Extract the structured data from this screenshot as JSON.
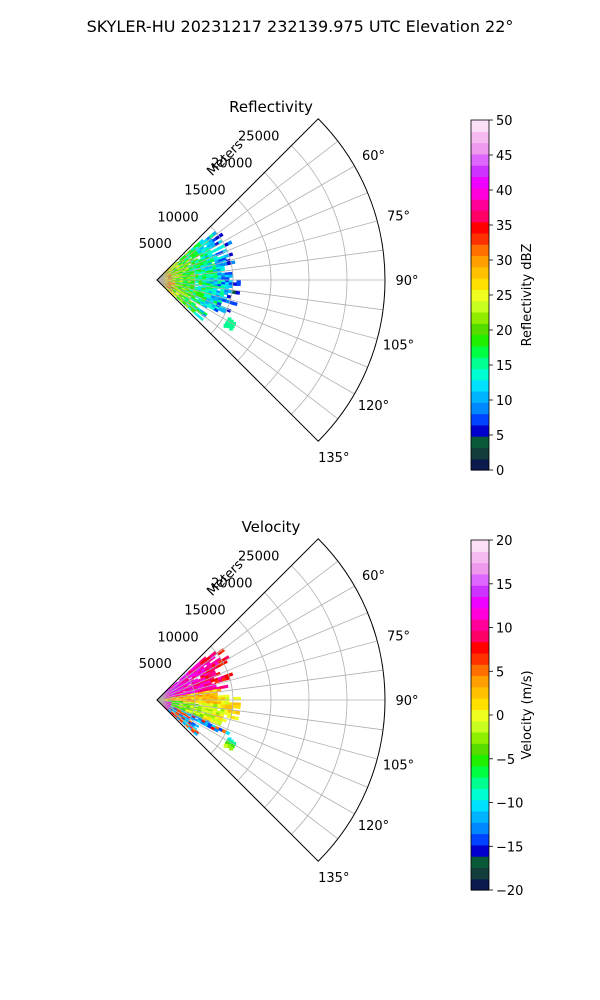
{
  "suptitle": "SKYLER-HU  20231217  232139.975 UTC Elevation 22°",
  "chart_data": [
    {
      "type": "heatmap",
      "projection": "polar-sector",
      "title": "Reflectivity",
      "radial_axis_label": "Meters",
      "radial_ticks": [
        "5000",
        "10000",
        "15000",
        "20000",
        "25000"
      ],
      "radial_values": [
        5000,
        10000,
        15000,
        20000,
        25000
      ],
      "rmax": 30000,
      "azimuth_ticks": [
        "60°",
        "75°",
        "90°",
        "105°",
        "120°",
        "135°"
      ],
      "azimuth_values": [
        60,
        75,
        90,
        105,
        120,
        135
      ],
      "azimuth_range": [
        45,
        135
      ],
      "grid": true,
      "colorbar": {
        "label": "Reflectivity dBZ",
        "min": 0,
        "max": 50,
        "ticks": [
          "0",
          "5",
          "10",
          "15",
          "20",
          "25",
          "30",
          "35",
          "40",
          "45",
          "50"
        ],
        "tick_values": [
          0,
          5,
          10,
          15,
          20,
          25,
          30,
          35,
          40,
          45,
          50
        ],
        "colors": [
          "#0b1b4d",
          "#123d3b",
          "#0a5a3a",
          "#0000cc",
          "#0044ff",
          "#0088ff",
          "#00b4ff",
          "#00e0ff",
          "#00ffd0",
          "#00ff90",
          "#00ff40",
          "#20f000",
          "#55dd00",
          "#90ee00",
          "#c8ff20",
          "#f0ff20",
          "#ffe000",
          "#ffc000",
          "#ffa000",
          "#ff7000",
          "#ff3000",
          "#ff0000",
          "#ff0066",
          "#ff0099",
          "#ff00dd",
          "#ee00ff",
          "#cc33ff",
          "#dd66ff",
          "#ee99ee",
          "#f5bbf0",
          "#fbe0f8"
        ]
      },
      "echo_extent_m": 11000,
      "echo_azimuth_span": [
        48,
        132
      ]
    },
    {
      "type": "heatmap",
      "projection": "polar-sector",
      "title": "Velocity",
      "radial_axis_label": "Meters",
      "radial_ticks": [
        "5000",
        "10000",
        "15000",
        "20000",
        "25000"
      ],
      "radial_values": [
        5000,
        10000,
        15000,
        20000,
        25000
      ],
      "rmax": 30000,
      "azimuth_ticks": [
        "60°",
        "75°",
        "90°",
        "105°",
        "120°",
        "135°"
      ],
      "azimuth_values": [
        60,
        75,
        90,
        105,
        120,
        135
      ],
      "azimuth_range": [
        45,
        135
      ],
      "grid": true,
      "colorbar": {
        "label": "Velocity (m/s)",
        "min": -20,
        "max": 20,
        "ticks": [
          "−20",
          "−15",
          "−10",
          "−5",
          "0",
          "5",
          "10",
          "15",
          "20"
        ],
        "tick_values": [
          -20,
          -15,
          -10,
          -5,
          0,
          5,
          10,
          15,
          20
        ],
        "colors": [
          "#0b1b4d",
          "#123d3b",
          "#0a5a3a",
          "#0000cc",
          "#0044ff",
          "#0088ff",
          "#00b4ff",
          "#00e0ff",
          "#00ffd0",
          "#00ff90",
          "#00ff40",
          "#20f000",
          "#55dd00",
          "#90ee00",
          "#c8ff20",
          "#f0ff20",
          "#ffe000",
          "#ffc000",
          "#ffa000",
          "#ff7000",
          "#ff3000",
          "#ff0000",
          "#ff0066",
          "#ff0099",
          "#ff00dd",
          "#ee00ff",
          "#cc33ff",
          "#dd66ff",
          "#ee99ee",
          "#f5bbf0",
          "#fbe0f8"
        ]
      },
      "echo_extent_m": 11000,
      "echo_azimuth_span": [
        48,
        132
      ]
    }
  ]
}
